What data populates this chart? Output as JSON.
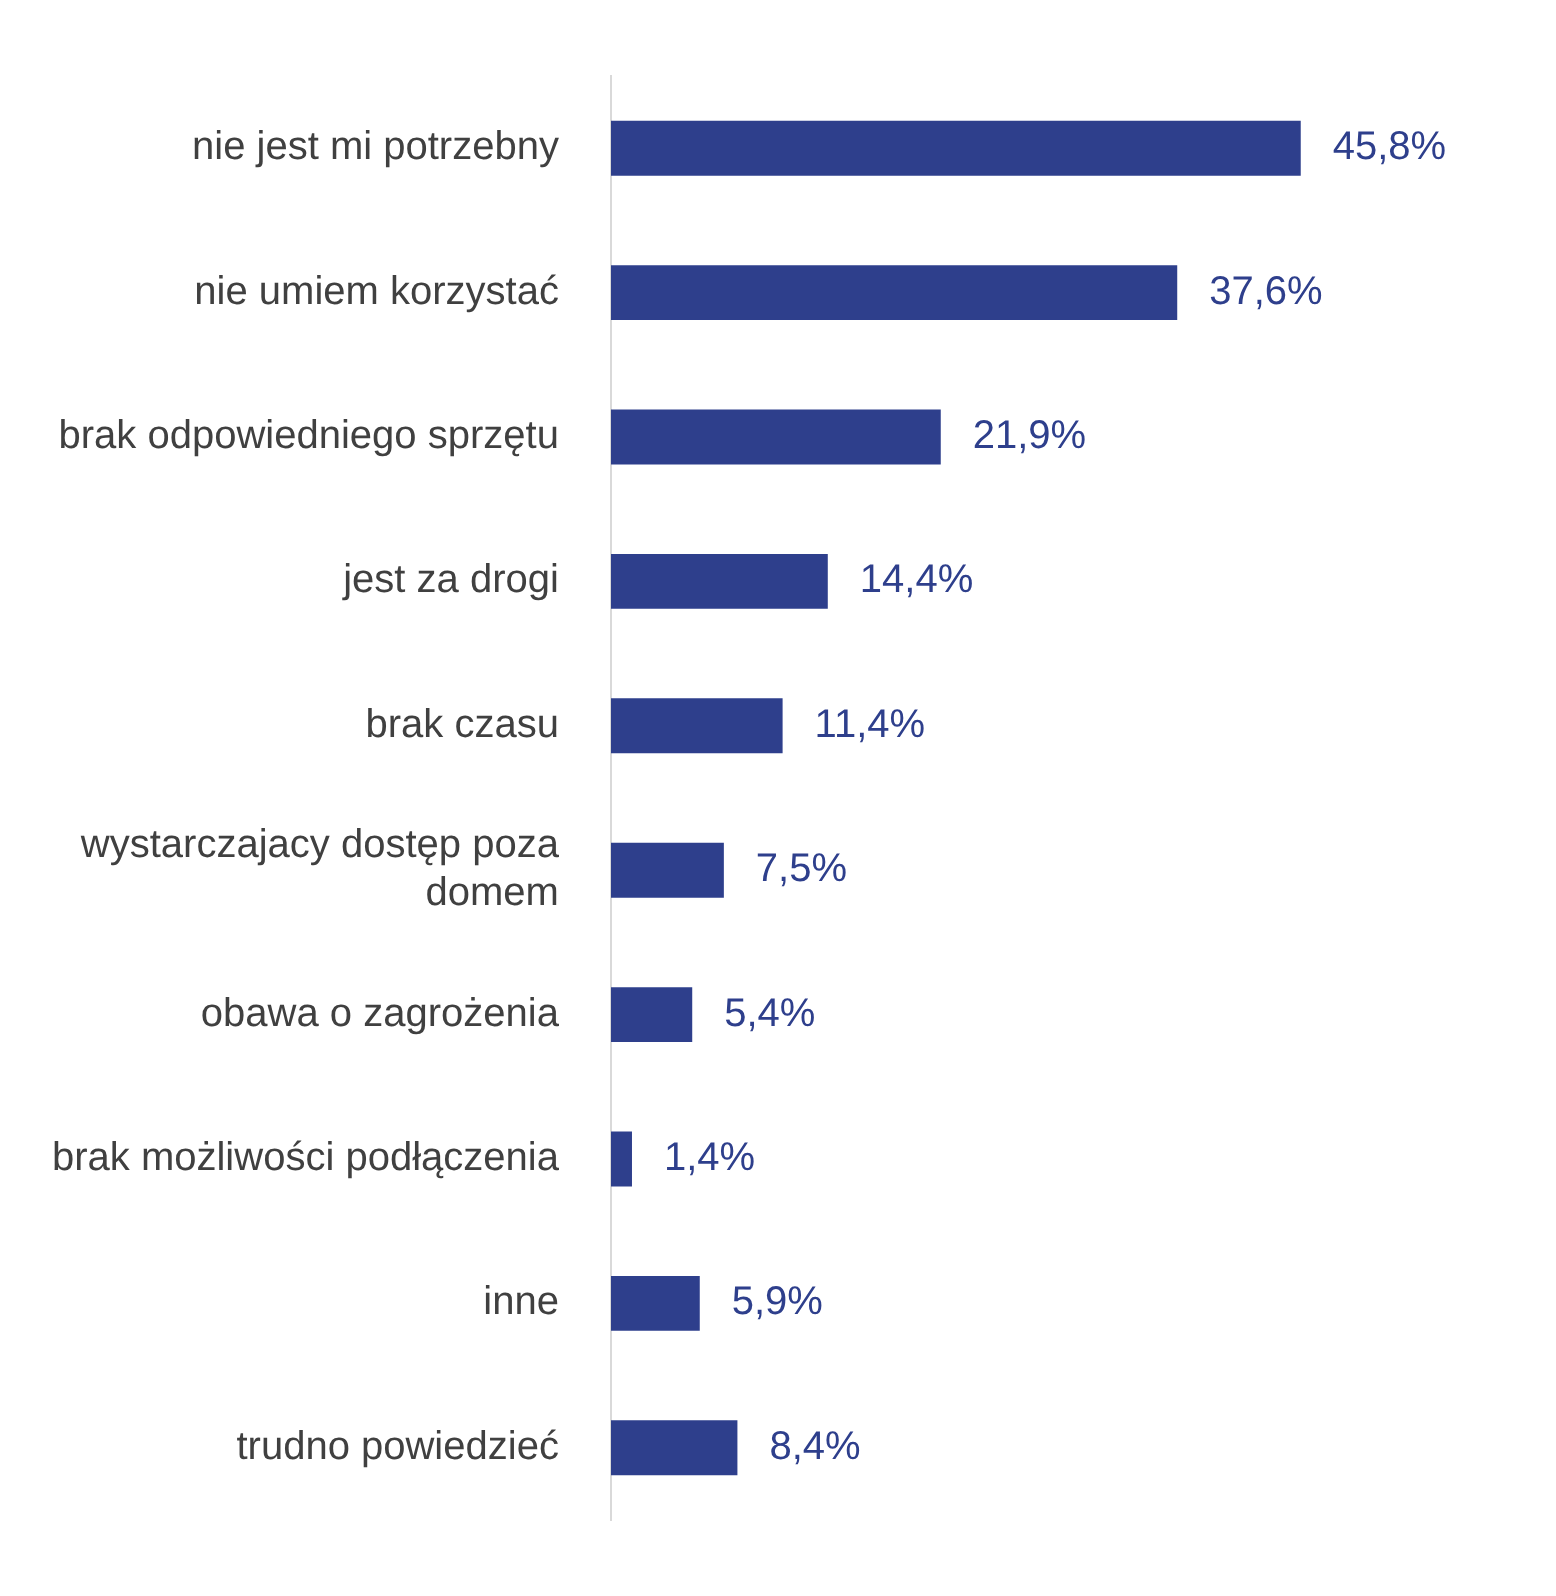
{
  "chart_data": {
    "type": "bar",
    "orientation": "horizontal",
    "categories": [
      "nie jest mi potrzebny",
      "nie umiem korzystać",
      "brak odpowiedniego sprzętu",
      "jest za drogi",
      "brak czasu",
      "wystarczajacy dostęp poza domem",
      "obawa o zagrożenia",
      "brak możliwości podłączenia",
      "inne",
      "trudno powiedzieć"
    ],
    "values": [
      45.8,
      37.6,
      21.9,
      14.4,
      11.4,
      7.5,
      5.4,
      1.4,
      5.9,
      8.4
    ],
    "value_labels": [
      "45,8%",
      "37,6%",
      "21,9%",
      "14,4%",
      "11,4%",
      "7,5%",
      "5,4%",
      "1,4%",
      "5,9%",
      "8,4%"
    ],
    "color": "#2e3f8c",
    "legend": false
  }
}
